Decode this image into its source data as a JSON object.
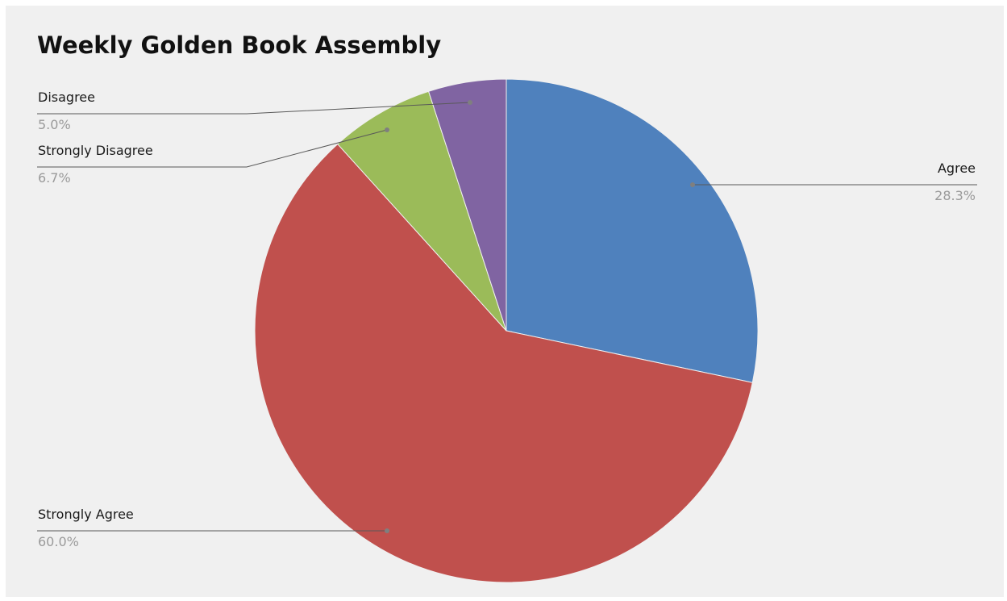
{
  "chart_data": {
    "type": "pie",
    "title": "Weekly Golden Book Assembly",
    "slices": [
      {
        "label": "Agree",
        "value": 28.3,
        "percent_label": "28.3%",
        "color": "#4f81bd"
      },
      {
        "label": "Strongly Agree",
        "value": 60.0,
        "percent_label": "60.0%",
        "color": "#c0504d"
      },
      {
        "label": "Strongly Disagree",
        "value": 6.7,
        "percent_label": "6.7%",
        "color": "#9bbb59"
      },
      {
        "label": "Disagree",
        "value": 5.0,
        "percent_label": "5.0%",
        "color": "#8064a2"
      }
    ],
    "start_angle_deg": 0,
    "direction": "clockwise",
    "legend": "none"
  }
}
